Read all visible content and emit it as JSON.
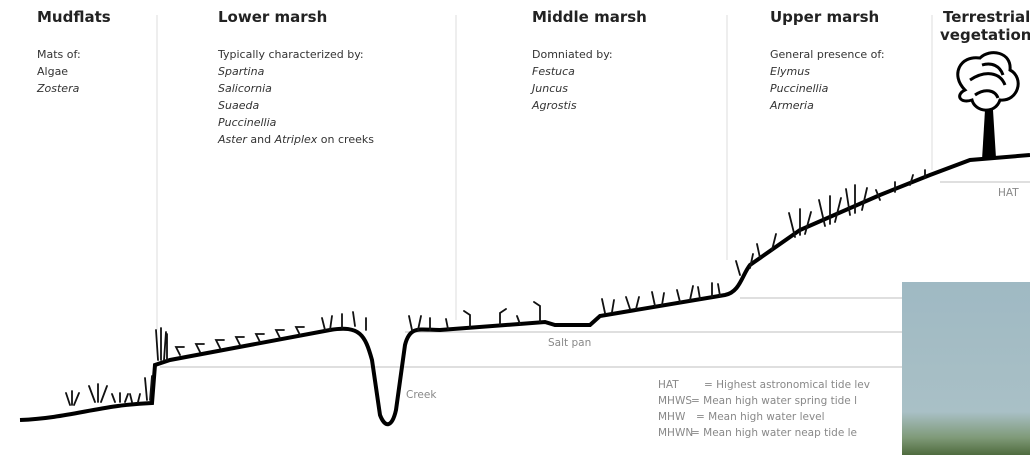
{
  "zones": [
    {
      "title": "Mudflats",
      "intro": "Mats of:",
      "items": [
        "Algae",
        "Zostera"
      ]
    },
    {
      "title": "Lower marsh",
      "intro": "Typically characterized by:",
      "items": [
        "Spartina",
        "Salicornia",
        "Suaeda",
        "Puccinellia"
      ],
      "extra": {
        "a": "Aster",
        "b": " and ",
        "c": "Atriplex",
        "d": " on creeks"
      }
    },
    {
      "title": "Middle marsh",
      "intro": "Domniated by:",
      "items": [
        "Festuca",
        "Juncus",
        "Agrostis"
      ]
    },
    {
      "title": "Upper marsh",
      "intro": "General presence of:",
      "items": [
        "Elymus",
        "Puccinellia",
        "Armeria"
      ]
    },
    {
      "title_lines": [
        "Terrestrial",
        "vegetation"
      ]
    }
  ],
  "labels": {
    "hat": "HAT",
    "salt_pan": "Salt pan",
    "creek": "Creek"
  },
  "legend": [
    {
      "abbr": "HAT",
      "text": "= Highest astronomical tide lev"
    },
    {
      "abbr": "MHWS",
      "text": "= Mean high water spring tide l"
    },
    {
      "abbr": "MHW",
      "text": "= Mean high water level"
    },
    {
      "abbr": "MHWN",
      "text": "= Mean high water neap tide le"
    }
  ]
}
